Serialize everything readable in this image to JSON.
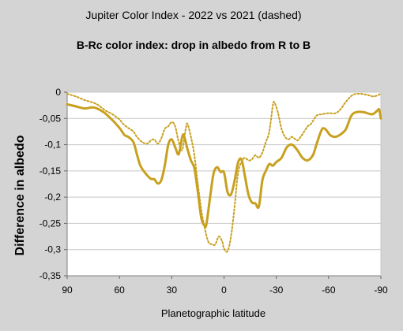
{
  "chart_data": {
    "type": "line",
    "title": "Jupiter Color Index - 2022 vs 2021 (dashed)",
    "subtitle": "B-Rc color index: drop in albedo from R to B",
    "xlabel": "Planetographic latitude",
    "ylabel": "Difference in albedo",
    "xlim": [
      90,
      -90
    ],
    "ylim": [
      -0.35,
      0
    ],
    "x_ticks": [
      90,
      60,
      30,
      0,
      -30,
      -60,
      -90
    ],
    "x_tick_labels": [
      "90",
      "60",
      "30",
      "0",
      "-30",
      "-60",
      "-90"
    ],
    "y_ticks": [
      0,
      -0.05,
      -0.1,
      -0.15,
      -0.2,
      -0.25,
      -0.3,
      -0.35
    ],
    "y_tick_labels": [
      "0",
      "-0,05",
      "-0,1",
      "-0,15",
      "-0,2",
      "-0,25",
      "-0,3",
      "-0,35"
    ],
    "grid": "horizontal",
    "legend": "none",
    "series": [
      {
        "color": "#c8a020",
        "style": "solid",
        "points": [
          [
            90,
            -0.023
          ],
          [
            85,
            -0.027
          ],
          [
            80,
            -0.031
          ],
          [
            75,
            -0.029
          ],
          [
            70,
            -0.036
          ],
          [
            65,
            -0.05
          ],
          [
            60,
            -0.068
          ],
          [
            57,
            -0.082
          ],
          [
            55,
            -0.085
          ],
          [
            52,
            -0.095
          ],
          [
            50,
            -0.118
          ],
          [
            48,
            -0.14
          ],
          [
            45,
            -0.155
          ],
          [
            42,
            -0.165
          ],
          [
            40,
            -0.166
          ],
          [
            38,
            -0.174
          ],
          [
            36,
            -0.168
          ],
          [
            34,
            -0.14
          ],
          [
            32,
            -0.1
          ],
          [
            30,
            -0.09
          ],
          [
            28,
            -0.105
          ],
          [
            26,
            -0.118
          ],
          [
            24,
            -0.085
          ],
          [
            23,
            -0.083
          ],
          [
            21,
            -0.108
          ],
          [
            19,
            -0.13
          ],
          [
            17,
            -0.145
          ],
          [
            15,
            -0.19
          ],
          [
            13,
            -0.24
          ],
          [
            11,
            -0.255
          ],
          [
            10,
            -0.25
          ],
          [
            8,
            -0.2
          ],
          [
            6,
            -0.155
          ],
          [
            4,
            -0.143
          ],
          [
            2,
            -0.152
          ],
          [
            0,
            -0.153
          ],
          [
            -2,
            -0.19
          ],
          [
            -4,
            -0.195
          ],
          [
            -6,
            -0.17
          ],
          [
            -8,
            -0.135
          ],
          [
            -10,
            -0.128
          ],
          [
            -12,
            -0.16
          ],
          [
            -14,
            -0.195
          ],
          [
            -16,
            -0.21
          ],
          [
            -18,
            -0.212
          ],
          [
            -20,
            -0.218
          ],
          [
            -22,
            -0.168
          ],
          [
            -24,
            -0.15
          ],
          [
            -26,
            -0.137
          ],
          [
            -28,
            -0.14
          ],
          [
            -30,
            -0.133
          ],
          [
            -33,
            -0.125
          ],
          [
            -36,
            -0.105
          ],
          [
            -39,
            -0.1
          ],
          [
            -42,
            -0.11
          ],
          [
            -45,
            -0.125
          ],
          [
            -48,
            -0.13
          ],
          [
            -51,
            -0.12
          ],
          [
            -53,
            -0.1
          ],
          [
            -56,
            -0.072
          ],
          [
            -58,
            -0.07
          ],
          [
            -61,
            -0.082
          ],
          [
            -64,
            -0.085
          ],
          [
            -67,
            -0.08
          ],
          [
            -70,
            -0.07
          ],
          [
            -73,
            -0.045
          ],
          [
            -76,
            -0.038
          ],
          [
            -80,
            -0.038
          ],
          [
            -85,
            -0.042
          ],
          [
            -88,
            -0.035
          ],
          [
            -89,
            -0.033
          ],
          [
            -90,
            -0.05
          ]
        ]
      },
      {
        "color": "#c8a020",
        "style": "dashed",
        "points": [
          [
            90,
            -0.003
          ],
          [
            85,
            -0.008
          ],
          [
            80,
            -0.015
          ],
          [
            75,
            -0.02
          ],
          [
            72,
            -0.025
          ],
          [
            68,
            -0.035
          ],
          [
            64,
            -0.042
          ],
          [
            60,
            -0.052
          ],
          [
            58,
            -0.06
          ],
          [
            55,
            -0.068
          ],
          [
            52,
            -0.075
          ],
          [
            50,
            -0.085
          ],
          [
            47,
            -0.095
          ],
          [
            44,
            -0.098
          ],
          [
            42,
            -0.092
          ],
          [
            40,
            -0.09
          ],
          [
            38,
            -0.098
          ],
          [
            36,
            -0.088
          ],
          [
            34,
            -0.07
          ],
          [
            32,
            -0.065
          ],
          [
            30,
            -0.057
          ],
          [
            28,
            -0.065
          ],
          [
            26,
            -0.095
          ],
          [
            24,
            -0.11
          ],
          [
            22,
            -0.07
          ],
          [
            21,
            -0.06
          ],
          [
            19,
            -0.085
          ],
          [
            17,
            -0.12
          ],
          [
            15,
            -0.175
          ],
          [
            13,
            -0.225
          ],
          [
            11,
            -0.26
          ],
          [
            9,
            -0.285
          ],
          [
            7,
            -0.29
          ],
          [
            5,
            -0.29
          ],
          [
            3,
            -0.275
          ],
          [
            1,
            -0.285
          ],
          [
            0,
            -0.298
          ],
          [
            -2,
            -0.303
          ],
          [
            -4,
            -0.275
          ],
          [
            -6,
            -0.22
          ],
          [
            -8,
            -0.155
          ],
          [
            -10,
            -0.133
          ],
          [
            -12,
            -0.125
          ],
          [
            -14,
            -0.13
          ],
          [
            -16,
            -0.128
          ],
          [
            -18,
            -0.12
          ],
          [
            -20,
            -0.125
          ],
          [
            -22,
            -0.115
          ],
          [
            -24,
            -0.095
          ],
          [
            -26,
            -0.075
          ],
          [
            -28,
            -0.025
          ],
          [
            -29,
            -0.02
          ],
          [
            -31,
            -0.04
          ],
          [
            -33,
            -0.07
          ],
          [
            -35,
            -0.085
          ],
          [
            -37,
            -0.09
          ],
          [
            -39,
            -0.085
          ],
          [
            -42,
            -0.092
          ],
          [
            -44,
            -0.085
          ],
          [
            -46,
            -0.075
          ],
          [
            -48,
            -0.065
          ],
          [
            -50,
            -0.06
          ],
          [
            -53,
            -0.045
          ],
          [
            -56,
            -0.042
          ],
          [
            -60,
            -0.04
          ],
          [
            -64,
            -0.04
          ],
          [
            -67,
            -0.032
          ],
          [
            -70,
            -0.018
          ],
          [
            -74,
            -0.005
          ],
          [
            -78,
            -0.003
          ],
          [
            -82,
            -0.005
          ],
          [
            -86,
            -0.008
          ],
          [
            -90,
            -0.003
          ]
        ]
      }
    ]
  }
}
